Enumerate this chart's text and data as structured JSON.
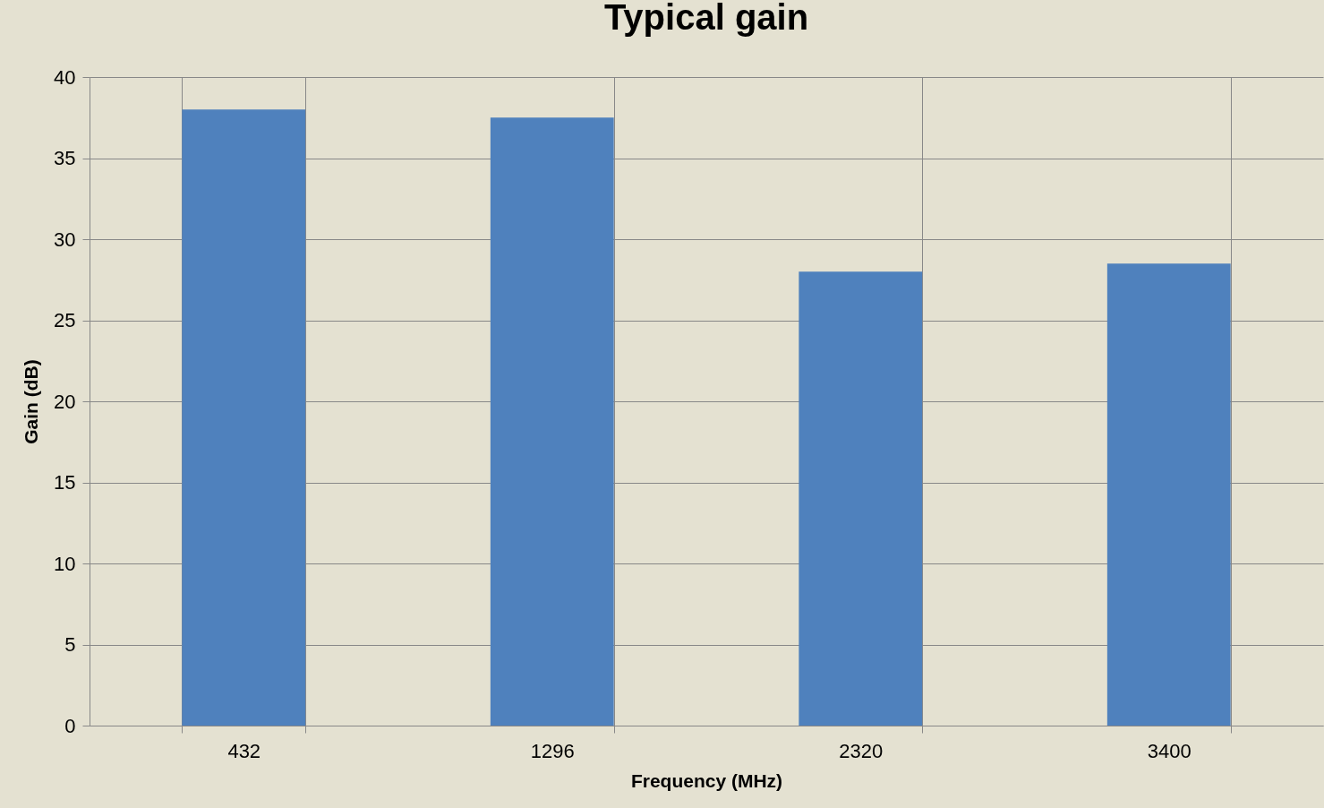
{
  "chart_data": {
    "type": "bar",
    "title": "Typical gain",
    "xlabel": "Frequency (MHz)",
    "ylabel": "Gain (dB)",
    "categories": [
      "432",
      "1296",
      "2320",
      "3400"
    ],
    "values": [
      38,
      37.5,
      28,
      28.5
    ],
    "color": "#4f81bd",
    "ylim": [
      0,
      40
    ],
    "yticks": [
      0,
      5,
      10,
      15,
      20,
      25,
      30,
      35,
      40
    ],
    "grid": true
  }
}
